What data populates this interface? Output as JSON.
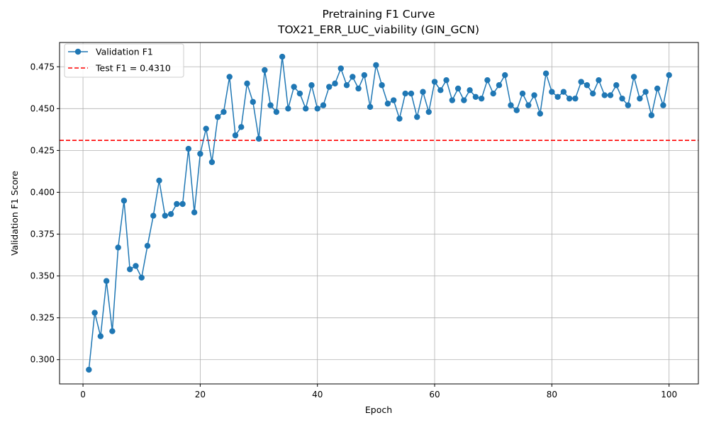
{
  "chart_data": {
    "type": "line",
    "title": "Pretraining F1 Curve",
    "subtitle": "TOX21_ERR_LUC_viability (GIN_GCN)",
    "xlabel": "Epoch",
    "ylabel": "Validation F1 Score",
    "xlim": [
      -4,
      105
    ],
    "ylim": [
      0.2855,
      0.4895
    ],
    "xticks": [
      0,
      20,
      40,
      60,
      80,
      100
    ],
    "yticks": [
      0.3,
      0.325,
      0.35,
      0.375,
      0.4,
      0.425,
      0.45,
      0.475
    ],
    "grid": true,
    "legend_position": "top-left",
    "series": [
      {
        "name": "Validation F1",
        "color": "#1f77b4",
        "marker": "circle",
        "x": [
          1,
          2,
          3,
          4,
          5,
          6,
          7,
          8,
          9,
          10,
          11,
          12,
          13,
          14,
          15,
          16,
          17,
          18,
          19,
          20,
          21,
          22,
          23,
          24,
          25,
          26,
          27,
          28,
          29,
          30,
          31,
          32,
          33,
          34,
          35,
          36,
          37,
          38,
          39,
          40,
          41,
          42,
          43,
          44,
          45,
          46,
          47,
          48,
          49,
          50,
          51,
          52,
          53,
          54,
          55,
          56,
          57,
          58,
          59,
          60,
          61,
          62,
          63,
          64,
          65,
          66,
          67,
          68,
          69,
          70,
          71,
          72,
          73,
          74,
          75,
          76,
          77,
          78,
          79,
          80,
          81,
          82,
          83,
          84,
          85,
          86,
          87,
          88,
          89,
          90,
          91,
          92,
          93,
          94,
          95,
          96,
          97,
          98,
          99,
          100
        ],
        "y": [
          0.294,
          0.328,
          0.314,
          0.347,
          0.317,
          0.367,
          0.395,
          0.354,
          0.356,
          0.349,
          0.368,
          0.386,
          0.407,
          0.386,
          0.387,
          0.393,
          0.393,
          0.426,
          0.388,
          0.423,
          0.438,
          0.418,
          0.445,
          0.448,
          0.469,
          0.434,
          0.439,
          0.465,
          0.454,
          0.432,
          0.473,
          0.452,
          0.448,
          0.481,
          0.45,
          0.463,
          0.459,
          0.45,
          0.464,
          0.45,
          0.452,
          0.463,
          0.465,
          0.474,
          0.464,
          0.469,
          0.462,
          0.47,
          0.451,
          0.476,
          0.464,
          0.453,
          0.455,
          0.444,
          0.459,
          0.459,
          0.445,
          0.46,
          0.448,
          0.466,
          0.461,
          0.467,
          0.455,
          0.462,
          0.455,
          0.461,
          0.457,
          0.456,
          0.467,
          0.459,
          0.464,
          0.47,
          0.452,
          0.449,
          0.459,
          0.452,
          0.458,
          0.447,
          0.471,
          0.46,
          0.457,
          0.46,
          0.456,
          0.456,
          0.466,
          0.464,
          0.459,
          0.467,
          0.458,
          0.458,
          0.464,
          0.456,
          0.452,
          0.469,
          0.456,
          0.46,
          0.446,
          0.462,
          0.452,
          0.47
        ]
      }
    ],
    "reference_lines": [
      {
        "name": "Test F1 = 0.4310",
        "orientation": "horizontal",
        "y": 0.431,
        "color": "#ff0000",
        "style": "dashed"
      }
    ]
  }
}
